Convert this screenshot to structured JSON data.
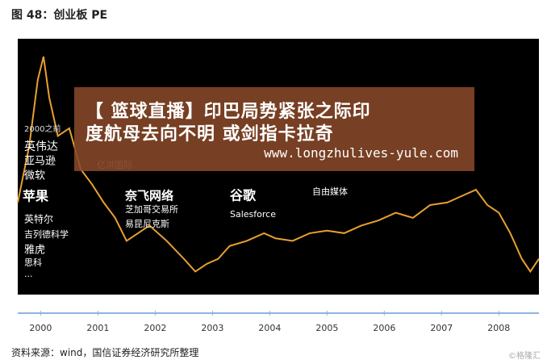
{
  "header": {
    "title": "图 48：创业板 PE"
  },
  "chart_data": {
    "type": "line",
    "x": [
      1999.6,
      1999.8,
      1999.95,
      2000.05,
      2000.15,
      2000.3,
      2000.5,
      2000.7,
      2000.9,
      2001.1,
      2001.3,
      2001.5,
      2001.7,
      2001.9,
      2002.2,
      2002.5,
      2002.7,
      2002.9,
      2003.1,
      2003.3,
      2003.6,
      2003.9,
      2004.1,
      2004.4,
      2004.7,
      2005.0,
      2005.3,
      2005.6,
      2005.9,
      2006.2,
      2006.5,
      2006.8,
      2007.1,
      2007.4,
      2007.6,
      2007.8,
      2008.0,
      2008.2,
      2008.4,
      2008.55,
      2008.7
    ],
    "series": [
      {
        "color": "#e8a030",
        "values": [
          36,
          58,
          84,
          93,
          77,
          62,
          65,
          49,
          43,
          36,
          30,
          21,
          24,
          27,
          21,
          14,
          9,
          12,
          14,
          19,
          21,
          24,
          22,
          21,
          24,
          25,
          24,
          27,
          29,
          32,
          30,
          35,
          36,
          39,
          41,
          35,
          32,
          24,
          14,
          9,
          14
        ]
      }
    ],
    "xlim": [
      1999.6,
      2008.7
    ],
    "xticks": [
      2000,
      2001,
      2002,
      2003,
      2004,
      2005,
      2006,
      2007,
      2008
    ],
    "ylim": [
      0,
      100
    ],
    "annotations": [
      "2000之前",
      "英伟达",
      "亚马逊",
      "微软",
      "苹果",
      "英特尔",
      "吉列德科学",
      "雅虎",
      "思科",
      "...",
      "亿洪国际",
      "奈飞网络",
      "芝加哥交易所",
      "易昆尼克斯",
      "谷歌",
      "Salesforce",
      "自由媒体"
    ]
  },
  "overlay": {
    "lines": [
      "【 篮球直播】印巴局势紧张之际印",
      "度航母去向不明 或剑指卡拉奇"
    ],
    "url": "www.longzhulives-yule.com"
  },
  "footer": {
    "source": "资料来源：wind，国信证券经济研究所整理",
    "watermark": "©格隆汇"
  }
}
